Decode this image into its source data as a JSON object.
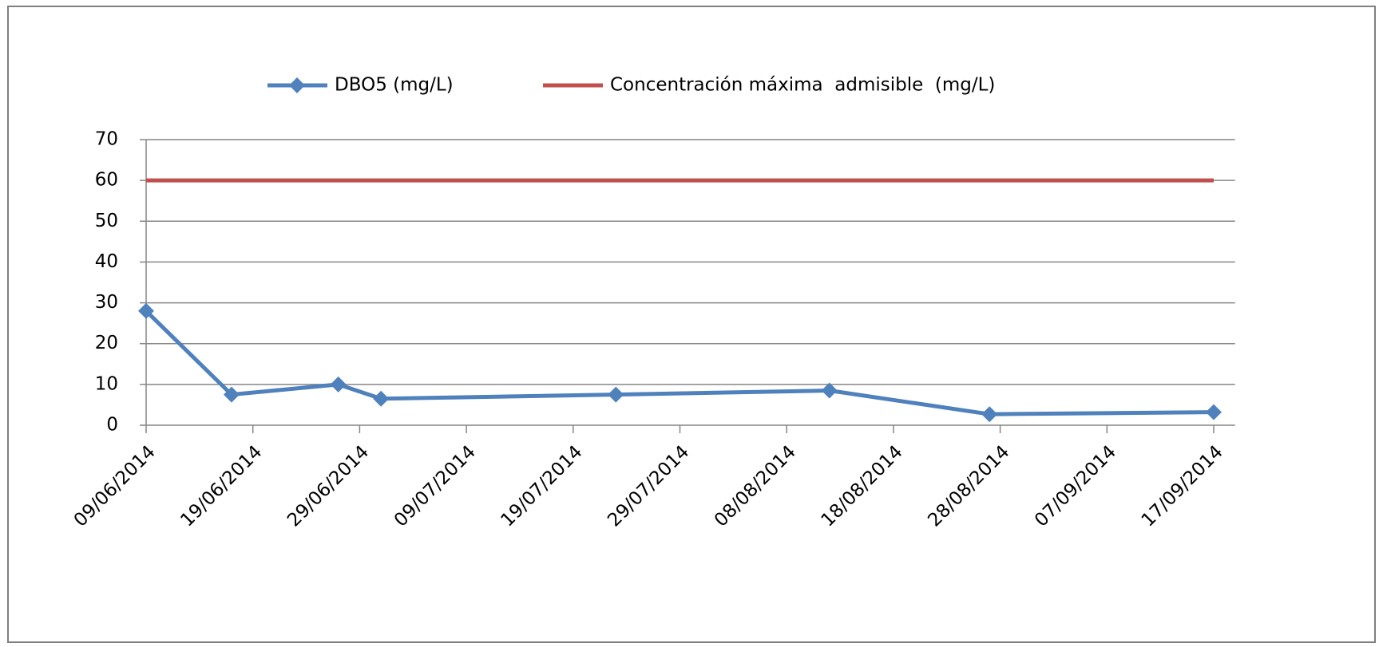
{
  "chart_data": {
    "type": "line",
    "x": [
      "09/06/2014",
      "17/06/2014",
      "27/06/2014",
      "01/07/2014",
      "23/07/2014",
      "12/08/2014",
      "27/08/2014",
      "17/09/2014"
    ],
    "series": [
      {
        "name": "DBO5 (mg/L)",
        "color": "#4f81bd",
        "marker": "diamond",
        "values": [
          28,
          7.5,
          10,
          6.5,
          7.5,
          8.5,
          2.7,
          3.2
        ]
      },
      {
        "name": "Concentración máxima  admisible  (mg/L)",
        "color": "#c0504d",
        "values": [
          60,
          60,
          60,
          60,
          60,
          60,
          60,
          60
        ]
      }
    ],
    "xlim": [
      "09/06/2014",
      "19/09/2014"
    ],
    "xticks": [
      "09/06/2014",
      "19/06/2014",
      "29/06/2014",
      "09/07/2014",
      "19/07/2014",
      "29/07/2014",
      "08/08/2014",
      "18/08/2014",
      "28/08/2014",
      "07/09/2014",
      "17/09/2014"
    ],
    "ylim": [
      0,
      70
    ],
    "yticks": [
      0,
      10,
      20,
      30,
      40,
      50,
      60,
      70
    ],
    "grid": true,
    "legend": "top"
  }
}
